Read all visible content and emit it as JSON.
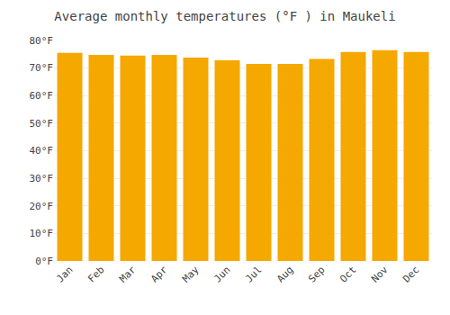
{
  "chart_data": {
    "type": "bar",
    "title": "Average monthly temperatures (°F ) in Maukeli",
    "categories": [
      "Jan",
      "Feb",
      "Mar",
      "Apr",
      "May",
      "Jun",
      "Jul",
      "Aug",
      "Sep",
      "Oct",
      "Nov",
      "Dec"
    ],
    "values": [
      75.5,
      74.8,
      74.5,
      74.8,
      73.8,
      72.8,
      71.5,
      71.5,
      73.3,
      75.8,
      76.5,
      75.8
    ],
    "color": "#F5A800",
    "ylim": [
      0,
      80
    ],
    "yticks": [
      {
        "value": 0,
        "label": "0°F"
      },
      {
        "value": 10,
        "label": "10°F"
      },
      {
        "value": 20,
        "label": "20°F"
      },
      {
        "value": 30,
        "label": "30°F"
      },
      {
        "value": 40,
        "label": "40°F"
      },
      {
        "value": 50,
        "label": "50°F"
      },
      {
        "value": 60,
        "label": "60°F"
      },
      {
        "value": 70,
        "label": "70°F"
      },
      {
        "value": 80,
        "label": "80°F"
      }
    ],
    "grid": true
  }
}
